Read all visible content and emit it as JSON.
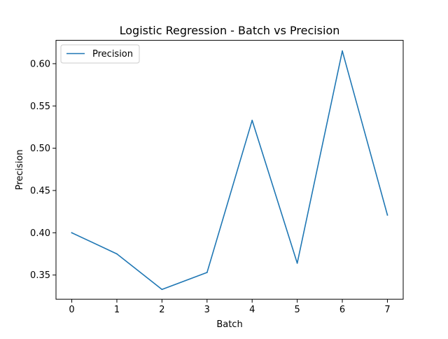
{
  "chart_data": {
    "type": "line",
    "title": "Logistic Regression - Batch vs Precision",
    "xlabel": "Batch",
    "ylabel": "Precision",
    "x": [
      0,
      1,
      2,
      3,
      4,
      5,
      6,
      7
    ],
    "xlim": [
      -0.35,
      7.35
    ],
    "ylim": [
      0.3214,
      0.6276
    ],
    "xticks": [
      0,
      1,
      2,
      3,
      4,
      5,
      6,
      7
    ],
    "yticks": [
      0.35,
      0.4,
      0.45,
      0.5,
      0.55,
      0.6
    ],
    "ytick_labels": [
      "0.35",
      "0.40",
      "0.45",
      "0.50",
      "0.55",
      "0.60"
    ],
    "grid": false,
    "legend_position": "upper-left",
    "series": [
      {
        "name": "Precision",
        "color": "#1f77b4",
        "values": [
          0.4,
          0.375,
          0.333,
          0.353,
          0.533,
          0.364,
          0.615,
          0.421
        ]
      }
    ]
  }
}
